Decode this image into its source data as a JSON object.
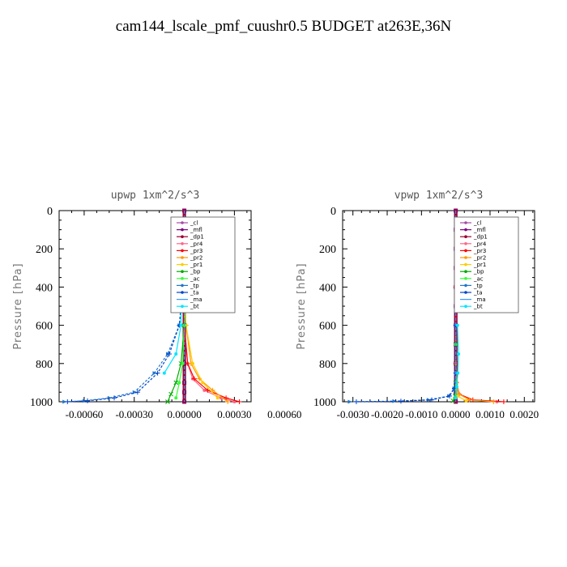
{
  "title": "cam144_lscale_pmf_cuushr0.5  BUDGET at263E,36N",
  "chart_data": [
    {
      "type": "line",
      "title": "upwp   1xm^2/s^3",
      "ylabel": "Pressure [hPa]",
      "xlim": [
        -0.00075,
        0.0004
      ],
      "ylim": [
        1000,
        0
      ],
      "xticks": [
        -0.0006,
        -0.0003,
        0.0,
        0.0003,
        0.0006
      ],
      "xtick_labels": [
        "-0.00060",
        "-0.00030",
        "0.00000",
        "0.00030",
        "0.00060"
      ],
      "yticks": [
        0,
        200,
        400,
        600,
        800,
        1000
      ],
      "ytick_labels": [
        "0",
        "200",
        "400",
        "600",
        "800",
        "1000"
      ],
      "legend_loc": "top-right",
      "series": [
        {
          "name": "_cl",
          "color": "#a64ca6",
          "marker": "o",
          "x": [
            0,
            0,
            0,
            0,
            0,
            0,
            0,
            0,
            0,
            0,
            0,
            0
          ],
          "y": [
            0,
            100,
            200,
            300,
            400,
            500,
            600,
            700,
            800,
            900,
            950,
            1000
          ]
        },
        {
          "name": "_mfl",
          "color": "#800080",
          "marker": "s",
          "x": [
            0,
            0,
            0,
            0,
            0,
            0,
            0,
            0,
            0,
            0,
            0,
            0
          ],
          "y": [
            0,
            100,
            200,
            300,
            400,
            500,
            600,
            700,
            800,
            900,
            950,
            1000
          ]
        },
        {
          "name": "_dp1",
          "color": "#990033",
          "marker": "o",
          "x": [
            0,
            0,
            0,
            0,
            0,
            0,
            0,
            0,
            0,
            0,
            0,
            0
          ],
          "y": [
            0,
            100,
            200,
            300,
            400,
            500,
            600,
            700,
            800,
            900,
            950,
            1000
          ]
        },
        {
          "name": "_pr4",
          "color": "#ff6688",
          "marker": "o",
          "x": [
            0,
            0,
            0,
            2e-05,
            5e-05,
            0.00012,
            0.00022,
            0.0003
          ],
          "y": [
            220,
            400,
            600,
            800,
            880,
            940,
            980,
            1000
          ]
        },
        {
          "name": "_pr3",
          "color": "#ff0000",
          "marker": "+",
          "x": [
            0,
            0,
            0,
            2e-05,
            6e-05,
            0.00014,
            0.00025,
            0.00033
          ],
          "y": [
            220,
            400,
            600,
            800,
            880,
            940,
            980,
            1000
          ]
        },
        {
          "name": "_pr2",
          "color": "#ff9900",
          "marker": "+",
          "x": [
            0,
            0,
            1e-05,
            4e-05,
            9e-05,
            0.00017,
            0.00026
          ],
          "y": [
            220,
            400,
            600,
            800,
            880,
            940,
            1000
          ]
        },
        {
          "name": "_pr1",
          "color": "#ffcc00",
          "marker": "o",
          "x": [
            0,
            0,
            1e-05,
            5e-05,
            0.00011,
            0.0002
          ],
          "y": [
            220,
            400,
            600,
            800,
            900,
            980
          ]
        },
        {
          "name": "_bp",
          "color": "#00aa00",
          "marker": "x",
          "x": [
            0,
            0,
            0,
            -2e-05,
            -5e-05,
            -8e-05,
            -0.0001
          ],
          "y": [
            220,
            400,
            600,
            800,
            900,
            960,
            1000
          ]
        },
        {
          "name": "_ac",
          "color": "#33ff33",
          "marker": "o",
          "x": [
            0,
            0,
            0,
            -1e-05,
            -3e-05,
            -5e-05
          ],
          "y": [
            220,
            400,
            600,
            800,
            900,
            980
          ]
        },
        {
          "name": "_tp",
          "color": "#2277cc",
          "marker": ">",
          "x": [
            1e-05,
            -1e-05,
            -3e-05,
            -2e-05,
            -3e-05,
            -0.0001,
            -0.00018,
            -0.0003,
            -0.00045,
            -0.0006,
            -0.00072
          ],
          "y": [
            220,
            300,
            400,
            500,
            600,
            750,
            850,
            950,
            980,
            995,
            1000
          ]
        },
        {
          "name": "_ta",
          "color": "#0044cc",
          "marker": "+",
          "x": [
            1e-05,
            -1e-05,
            -3e-05,
            -2e-05,
            -3e-05,
            -9e-05,
            -0.00016,
            -0.00028,
            -0.00042,
            -0.00058,
            -0.0007
          ],
          "y": [
            220,
            300,
            400,
            500,
            600,
            750,
            850,
            950,
            980,
            995,
            1000
          ]
        },
        {
          "name": "_ma",
          "color": "#3399ff",
          "marker": "-",
          "x": [
            0,
            0,
            0,
            0,
            0,
            0,
            0
          ],
          "y": [
            0,
            200,
            400,
            600,
            800,
            900,
            1000
          ]
        },
        {
          "name": "_bt",
          "color": "#00e5ff",
          "marker": "o",
          "x": [
            1e-05,
            0,
            -1e-05,
            -2e-05,
            -2e-05,
            -5e-05,
            -0.00012
          ],
          "y": [
            200,
            300,
            400,
            500,
            600,
            750,
            850
          ]
        }
      ]
    },
    {
      "type": "line",
      "title": "vpwp   1xm^2/s^3",
      "ylabel": "Pressure [hPa]",
      "xlim": [
        -0.0033,
        0.0023
      ],
      "ylim": [
        1000,
        0
      ],
      "xticks": [
        -0.003,
        -0.002,
        -0.001,
        0.0,
        0.001,
        0.002
      ],
      "xtick_labels": [
        "-0.0030",
        "-0.0020",
        "-0.0010",
        "0.0000",
        "0.0010",
        "0.0020"
      ],
      "yticks": [
        0,
        200,
        400,
        600,
        800,
        1000
      ],
      "ytick_labels": [
        "0",
        "200",
        "400",
        "600",
        "800",
        "1000"
      ],
      "legend_loc": "top-right",
      "series": [
        {
          "name": "_cl",
          "color": "#a64ca6",
          "marker": "o",
          "x": [
            0,
            0,
            0,
            0,
            0,
            0,
            0,
            0,
            0,
            0,
            0,
            0
          ],
          "y": [
            0,
            100,
            200,
            300,
            400,
            500,
            600,
            700,
            800,
            900,
            950,
            1000
          ]
        },
        {
          "name": "_mfl",
          "color": "#800080",
          "marker": "s",
          "x": [
            0,
            0,
            0,
            0,
            0,
            0,
            0,
            0,
            0,
            0,
            0,
            0
          ],
          "y": [
            0,
            100,
            200,
            300,
            400,
            500,
            600,
            700,
            800,
            900,
            950,
            1000
          ]
        },
        {
          "name": "_dp1",
          "color": "#990033",
          "marker": "o",
          "x": [
            0,
            0,
            0,
            0,
            0,
            0,
            0,
            0,
            0,
            0,
            0,
            0
          ],
          "y": [
            0,
            100,
            200,
            300,
            400,
            500,
            600,
            700,
            800,
            900,
            950,
            1000
          ]
        },
        {
          "name": "_pr4",
          "color": "#ff6688",
          "marker": "o",
          "x": [
            0,
            0,
            2e-05,
            0.0001,
            0.0004,
            0.0012
          ],
          "y": [
            400,
            800,
            900,
            960,
            990,
            1000
          ]
        },
        {
          "name": "_pr3",
          "color": "#ff0000",
          "marker": "+",
          "x": [
            0,
            0,
            2e-05,
            0.0001,
            0.0005,
            0.0014
          ],
          "y": [
            400,
            800,
            900,
            960,
            990,
            1000
          ]
        },
        {
          "name": "_pr2",
          "color": "#ff9900",
          "marker": "+",
          "x": [
            0,
            1e-05,
            0.0001,
            0.0004,
            0.0011
          ],
          "y": [
            600,
            900,
            960,
            990,
            1000
          ]
        },
        {
          "name": "_pr1",
          "color": "#ffcc00",
          "marker": "o",
          "x": [
            0,
            1e-05,
            5e-05,
            0.0003
          ],
          "y": [
            700,
            900,
            970,
            995
          ]
        },
        {
          "name": "_bp",
          "color": "#00aa00",
          "marker": "x",
          "x": [
            0,
            0,
            -2e-05,
            -8e-05
          ],
          "y": [
            700,
            900,
            970,
            995
          ]
        },
        {
          "name": "_ac",
          "color": "#33ff33",
          "marker": "o",
          "x": [
            0,
            0,
            -1e-05
          ],
          "y": [
            700,
            900,
            980
          ]
        },
        {
          "name": "_tp",
          "color": "#2277cc",
          "marker": ">",
          "x": [
            0,
            0,
            -5e-05,
            -0.0002,
            -0.0008,
            -0.0018,
            -0.0031
          ],
          "y": [
            600,
            850,
            930,
            970,
            990,
            997,
            1000
          ]
        },
        {
          "name": "_ta",
          "color": "#0044cc",
          "marker": "+",
          "x": [
            0,
            0,
            -4e-05,
            -0.00018,
            -0.0007,
            -0.0016,
            -0.0029
          ],
          "y": [
            600,
            850,
            930,
            970,
            990,
            997,
            1000
          ]
        },
        {
          "name": "_ma",
          "color": "#3399ff",
          "marker": "-",
          "x": [
            0,
            0,
            0,
            0,
            0,
            0
          ],
          "y": [
            0,
            200,
            400,
            600,
            800,
            1000
          ]
        },
        {
          "name": "_bt",
          "color": "#00e5ff",
          "marker": "o",
          "x": [
            5e-05,
            8e-05,
            6e-05,
            3e-05,
            0
          ],
          "y": [
            600,
            750,
            850,
            920,
            980
          ]
        }
      ]
    }
  ]
}
